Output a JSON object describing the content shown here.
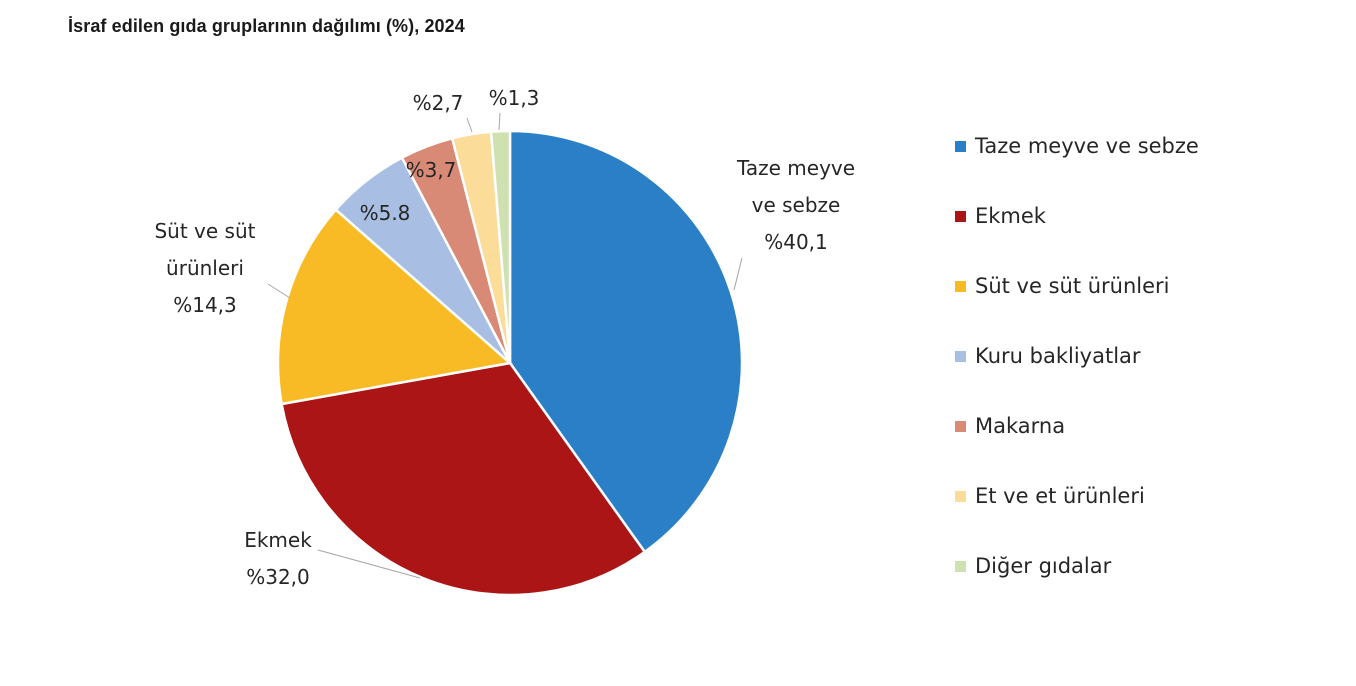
{
  "chart_data": {
    "type": "pie",
    "title": "İsraf edilen gıda gruplarının dağılımı (%), 2024",
    "slices": [
      {
        "name": "Taze meyve ve sebze",
        "value": 40.1,
        "color": "#2a7fc6",
        "label_lines": [
          "Taze meyve",
          "ve sebze",
          "%40,1"
        ]
      },
      {
        "name": "Ekmek",
        "value": 32.0,
        "color": "#ab1515",
        "label_lines": [
          "Ekmek",
          "%32,0"
        ]
      },
      {
        "name": "Süt ve süt ürünleri",
        "value": 14.3,
        "color": "#f9bb25",
        "label_lines": [
          "Süt ve süt",
          "ürünleri",
          "%14,3"
        ]
      },
      {
        "name": "Kuru bakliyatlar",
        "value": 5.8,
        "color": "#a8bfe3",
        "label_lines": [
          "%5.8"
        ]
      },
      {
        "name": "Makarna",
        "value": 3.7,
        "color": "#d98a76",
        "label_lines": [
          "%3,7"
        ]
      },
      {
        "name": "Et ve et ürünleri",
        "value": 2.7,
        "color": "#fbdc99",
        "label_lines": [
          "%2,7"
        ]
      },
      {
        "name": "Diğer gıdalar",
        "value": 1.3,
        "color": "#cfe1b0",
        "label_lines": [
          "%1,3"
        ]
      }
    ],
    "legend_position": "right"
  }
}
